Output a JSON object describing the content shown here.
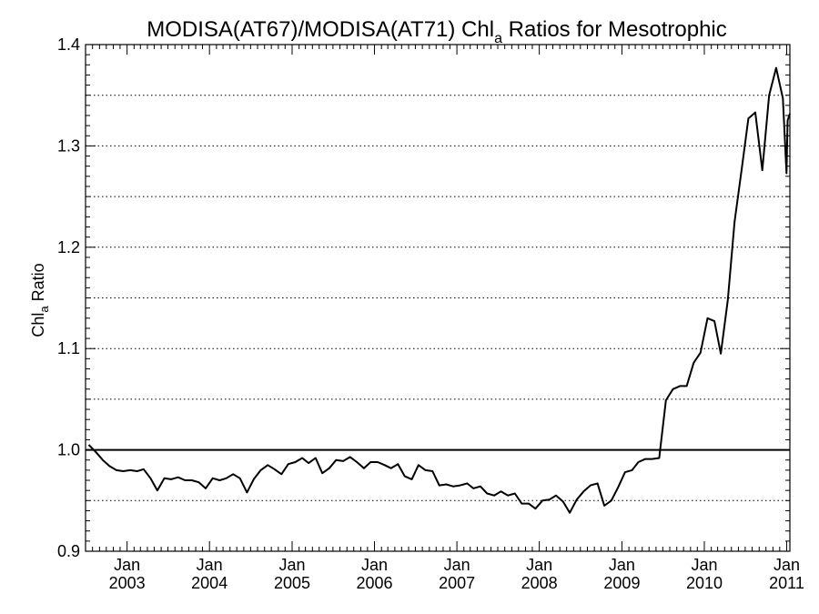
{
  "chart_data": {
    "type": "line",
    "title": {
      "prefix": "MODISA(AT67)/MODISA(AT71)  Chl",
      "subscript": "a",
      "suffix": " Ratios for Mesotrophic"
    },
    "ylabel": {
      "prefix": "Chl",
      "subscript": "a",
      "suffix": " Ratio"
    },
    "xlim": [
      "2002-07-01",
      "2011-01-15"
    ],
    "ylim": [
      0.9,
      1.4
    ],
    "y_ticks": [
      0.9,
      1.0,
      1.1,
      1.2,
      1.3,
      1.4
    ],
    "y_tick_labels": [
      "0.9",
      "1.0",
      "1.1",
      "1.2",
      "1.3",
      "1.4"
    ],
    "y_minor_step": 0.01,
    "x_ticks": [
      {
        "date": "2003-01-01",
        "month": "Jan",
        "year": "2003"
      },
      {
        "date": "2004-01-01",
        "month": "Jan",
        "year": "2004"
      },
      {
        "date": "2005-01-01",
        "month": "Jan",
        "year": "2005"
      },
      {
        "date": "2006-01-01",
        "month": "Jan",
        "year": "2006"
      },
      {
        "date": "2007-01-01",
        "month": "Jan",
        "year": "2007"
      },
      {
        "date": "2008-01-01",
        "month": "Jan",
        "year": "2008"
      },
      {
        "date": "2009-01-01",
        "month": "Jan",
        "year": "2009"
      },
      {
        "date": "2010-01-01",
        "month": "Jan",
        "year": "2010"
      },
      {
        "date": "2011-01-01",
        "month": "Jan",
        "year": "2011"
      }
    ],
    "grid": {
      "dotted_horizontal": [
        0.95,
        1.05,
        1.1,
        1.15,
        1.2,
        1.25,
        1.3,
        1.35,
        1.4
      ],
      "reference_line": 1.0
    },
    "series": [
      {
        "color": "#000000",
        "points": [
          [
            "2002-07-15",
            1.005
          ],
          [
            "2002-08-15",
            0.998
          ],
          [
            "2002-09-15",
            0.99
          ],
          [
            "2002-10-15",
            0.984
          ],
          [
            "2002-11-15",
            0.98
          ],
          [
            "2002-12-15",
            0.979
          ],
          [
            "2003-01-15",
            0.98
          ],
          [
            "2003-02-15",
            0.979
          ],
          [
            "2003-03-15",
            0.981
          ],
          [
            "2003-04-15",
            0.972
          ],
          [
            "2003-05-15",
            0.96
          ],
          [
            "2003-06-15",
            0.972
          ],
          [
            "2003-07-15",
            0.971
          ],
          [
            "2003-08-15",
            0.973
          ],
          [
            "2003-09-15",
            0.97
          ],
          [
            "2003-10-15",
            0.97
          ],
          [
            "2003-11-15",
            0.968
          ],
          [
            "2003-12-15",
            0.962
          ],
          [
            "2004-01-15",
            0.972
          ],
          [
            "2004-02-15",
            0.97
          ],
          [
            "2004-03-15",
            0.972
          ],
          [
            "2004-04-15",
            0.976
          ],
          [
            "2004-05-15",
            0.972
          ],
          [
            "2004-06-15",
            0.958
          ],
          [
            "2004-07-15",
            0.971
          ],
          [
            "2004-08-15",
            0.98
          ],
          [
            "2004-09-15",
            0.985
          ],
          [
            "2004-10-15",
            0.981
          ],
          [
            "2004-11-15",
            0.976
          ],
          [
            "2004-12-15",
            0.986
          ],
          [
            "2005-01-15",
            0.988
          ],
          [
            "2005-02-15",
            0.992
          ],
          [
            "2005-03-15",
            0.987
          ],
          [
            "2005-04-15",
            0.992
          ],
          [
            "2005-05-15",
            0.977
          ],
          [
            "2005-06-15",
            0.982
          ],
          [
            "2005-07-15",
            0.99
          ],
          [
            "2005-08-15",
            0.989
          ],
          [
            "2005-09-15",
            0.993
          ],
          [
            "2005-10-15",
            0.988
          ],
          [
            "2005-11-15",
            0.982
          ],
          [
            "2005-12-15",
            0.988
          ],
          [
            "2006-01-15",
            0.988
          ],
          [
            "2006-02-15",
            0.985
          ],
          [
            "2006-03-15",
            0.982
          ],
          [
            "2006-04-15",
            0.986
          ],
          [
            "2006-05-15",
            0.974
          ],
          [
            "2006-06-15",
            0.971
          ],
          [
            "2006-07-15",
            0.985
          ],
          [
            "2006-08-15",
            0.98
          ],
          [
            "2006-09-15",
            0.979
          ],
          [
            "2006-10-15",
            0.965
          ],
          [
            "2006-11-15",
            0.966
          ],
          [
            "2006-12-15",
            0.964
          ],
          [
            "2007-01-15",
            0.965
          ],
          [
            "2007-02-15",
            0.967
          ],
          [
            "2007-03-15",
            0.962
          ],
          [
            "2007-04-15",
            0.964
          ],
          [
            "2007-05-15",
            0.957
          ],
          [
            "2007-06-15",
            0.955
          ],
          [
            "2007-07-15",
            0.959
          ],
          [
            "2007-08-15",
            0.955
          ],
          [
            "2007-09-15",
            0.957
          ],
          [
            "2007-10-15",
            0.947
          ],
          [
            "2007-11-15",
            0.947
          ],
          [
            "2007-12-15",
            0.942
          ],
          [
            "2008-01-15",
            0.95
          ],
          [
            "2008-02-15",
            0.951
          ],
          [
            "2008-03-15",
            0.955
          ],
          [
            "2008-04-15",
            0.949
          ],
          [
            "2008-05-15",
            0.938
          ],
          [
            "2008-06-15",
            0.951
          ],
          [
            "2008-07-15",
            0.959
          ],
          [
            "2008-08-15",
            0.965
          ],
          [
            "2008-09-15",
            0.967
          ],
          [
            "2008-10-15",
            0.945
          ],
          [
            "2008-11-15",
            0.95
          ],
          [
            "2008-12-15",
            0.963
          ],
          [
            "2009-01-15",
            0.978
          ],
          [
            "2009-02-15",
            0.98
          ],
          [
            "2009-03-15",
            0.988
          ],
          [
            "2009-04-15",
            0.991
          ],
          [
            "2009-05-15",
            0.991
          ],
          [
            "2009-06-15",
            0.992
          ],
          [
            "2009-07-15",
            1.049
          ],
          [
            "2009-08-15",
            1.06
          ],
          [
            "2009-09-15",
            1.063
          ],
          [
            "2009-10-15",
            1.063
          ],
          [
            "2009-11-15",
            1.086
          ],
          [
            "2009-12-15",
            1.096
          ],
          [
            "2010-01-15",
            1.13
          ],
          [
            "2010-02-15",
            1.127
          ],
          [
            "2010-03-15",
            1.095
          ],
          [
            "2010-04-15",
            1.148
          ],
          [
            "2010-05-15",
            1.225
          ],
          [
            "2010-06-15",
            1.276
          ],
          [
            "2010-07-15",
            1.327
          ],
          [
            "2010-08-15",
            1.333
          ],
          [
            "2010-09-15",
            1.276
          ],
          [
            "2010-10-15",
            1.35
          ],
          [
            "2010-11-15",
            1.377
          ],
          [
            "2010-12-15",
            1.347
          ],
          [
            "2010-12-31",
            1.273
          ],
          [
            "2011-01-05",
            1.325
          ],
          [
            "2011-01-15",
            1.332
          ]
        ]
      }
    ]
  }
}
